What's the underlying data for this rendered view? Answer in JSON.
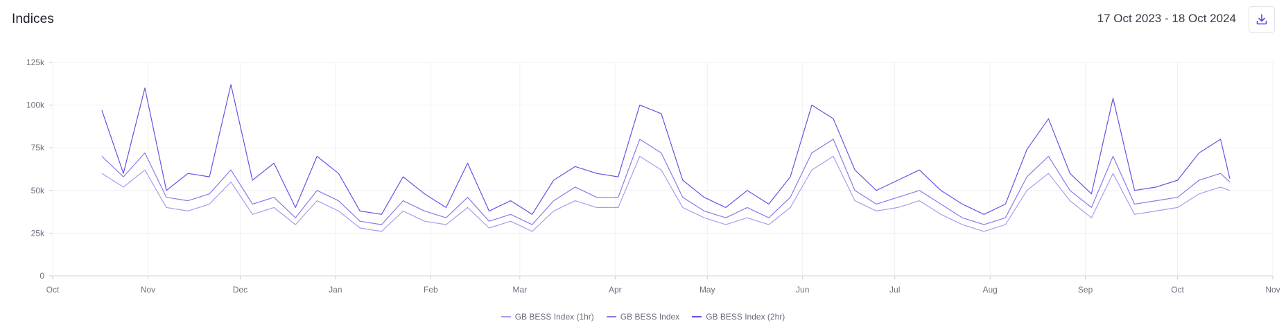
{
  "header": {
    "title": "Indices",
    "date_range": "17 Oct 2023 - 18 Oct 2024",
    "download_icon": "download-icon"
  },
  "chart_data": {
    "type": "line",
    "title": "",
    "xlabel": "",
    "ylabel": "",
    "x_ticks": [
      "Oct",
      "Nov",
      "Dec",
      "Jan",
      "Feb",
      "Mar",
      "Apr",
      "May",
      "Jun",
      "Jul",
      "Aug",
      "Sep",
      "Oct",
      "Nov"
    ],
    "x_range": [
      "2023-10-01",
      "2024-11-01"
    ],
    "y_ticks": [
      "0",
      "25k",
      "50k",
      "75k",
      "100k",
      "125k"
    ],
    "ylim": [
      0,
      125000
    ],
    "grid": true,
    "legend_position": "bottom-center",
    "x": [
      "2023-10-17",
      "2023-10-24",
      "2023-10-31",
      "2023-11-07",
      "2023-11-14",
      "2023-11-21",
      "2023-11-28",
      "2023-12-05",
      "2023-12-12",
      "2023-12-19",
      "2023-12-26",
      "2024-01-02",
      "2024-01-09",
      "2024-01-16",
      "2024-01-23",
      "2024-01-30",
      "2024-02-06",
      "2024-02-13",
      "2024-02-20",
      "2024-02-27",
      "2024-03-05",
      "2024-03-12",
      "2024-03-19",
      "2024-03-26",
      "2024-04-02",
      "2024-04-09",
      "2024-04-16",
      "2024-04-23",
      "2024-04-30",
      "2024-05-07",
      "2024-05-14",
      "2024-05-21",
      "2024-05-28",
      "2024-06-04",
      "2024-06-11",
      "2024-06-18",
      "2024-06-25",
      "2024-07-02",
      "2024-07-09",
      "2024-07-16",
      "2024-07-23",
      "2024-07-30",
      "2024-08-06",
      "2024-08-13",
      "2024-08-20",
      "2024-08-27",
      "2024-09-03",
      "2024-09-10",
      "2024-09-17",
      "2024-09-24",
      "2024-10-01",
      "2024-10-08",
      "2024-10-15",
      "2024-10-18"
    ],
    "series": [
      {
        "name": "GB BESS Index (1hr)",
        "color": "#a89cf0",
        "values": [
          60000,
          52000,
          62000,
          40000,
          38000,
          42000,
          55000,
          36000,
          40000,
          30000,
          44000,
          38000,
          28000,
          26000,
          38000,
          32000,
          30000,
          40000,
          28000,
          32000,
          26000,
          38000,
          44000,
          40000,
          40000,
          70000,
          62000,
          40000,
          34000,
          30000,
          34000,
          30000,
          40000,
          62000,
          70000,
          44000,
          38000,
          40000,
          44000,
          36000,
          30000,
          26000,
          30000,
          50000,
          60000,
          44000,
          34000,
          60000,
          36000,
          38000,
          40000,
          48000,
          52000,
          50000
        ]
      },
      {
        "name": "GB BESS Index",
        "color": "#8a78ea",
        "values": [
          70000,
          58000,
          72000,
          46000,
          44000,
          48000,
          62000,
          42000,
          46000,
          34000,
          50000,
          44000,
          32000,
          30000,
          44000,
          38000,
          34000,
          46000,
          32000,
          36000,
          30000,
          44000,
          52000,
          46000,
          46000,
          80000,
          72000,
          46000,
          38000,
          34000,
          40000,
          34000,
          46000,
          72000,
          80000,
          50000,
          42000,
          46000,
          50000,
          42000,
          34000,
          30000,
          34000,
          58000,
          70000,
          50000,
          40000,
          70000,
          42000,
          44000,
          46000,
          56000,
          60000,
          55000
        ]
      },
      {
        "name": "GB BESS Index (2hr)",
        "color": "#6d4ee3",
        "values": [
          97000,
          60000,
          110000,
          50000,
          60000,
          58000,
          112000,
          56000,
          66000,
          40000,
          70000,
          60000,
          38000,
          36000,
          58000,
          48000,
          40000,
          66000,
          38000,
          44000,
          36000,
          56000,
          64000,
          60000,
          58000,
          100000,
          95000,
          56000,
          46000,
          40000,
          50000,
          42000,
          58000,
          100000,
          92000,
          62000,
          50000,
          56000,
          62000,
          50000,
          42000,
          36000,
          42000,
          74000,
          92000,
          60000,
          48000,
          104000,
          50000,
          52000,
          56000,
          72000,
          80000,
          57000
        ]
      }
    ]
  }
}
